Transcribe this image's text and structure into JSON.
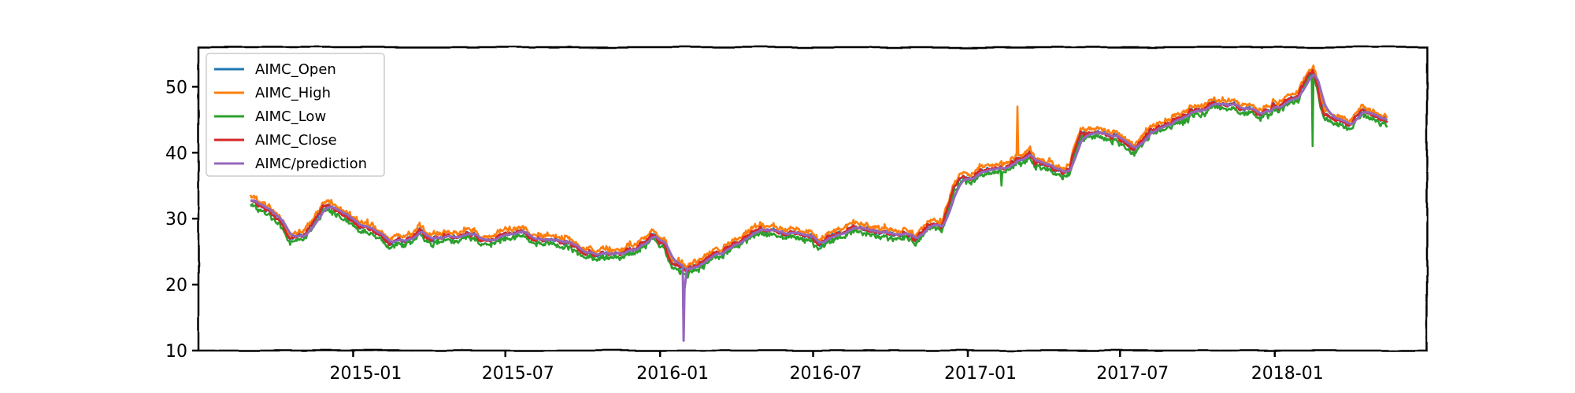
{
  "chart_data": {
    "type": "line",
    "title": "",
    "xlabel": "",
    "ylabel": "",
    "x_range": [
      "2014-09-01",
      "2018-05-15"
    ],
    "xlim": [
      "2014-07-01",
      "2018-07-01"
    ],
    "ylim": [
      10,
      56
    ],
    "grid": false,
    "legend_position": "top-left",
    "x_ticks": [
      "2015-01",
      "2015-07",
      "2016-01",
      "2016-07",
      "2017-01",
      "2017-07",
      "2018-01"
    ],
    "y_ticks": [
      "10",
      "20",
      "30",
      "40",
      "50"
    ],
    "anchors": {
      "x": [
        "2014-09-01",
        "2014-10-15",
        "2014-11-01",
        "2014-11-15",
        "2014-12-01",
        "2014-12-15",
        "2015-01-15",
        "2015-02-15",
        "2015-03-15",
        "2015-04-15",
        "2015-05-15",
        "2015-06-15",
        "2015-07-15",
        "2015-08-15",
        "2015-09-15",
        "2015-10-15",
        "2015-11-15",
        "2015-12-15",
        "2016-01-05",
        "2016-01-15",
        "2016-02-01",
        "2016-02-15",
        "2016-03-15",
        "2016-04-15",
        "2016-05-15",
        "2016-06-15",
        "2016-07-15",
        "2016-08-15",
        "2016-09-15",
        "2016-10-15",
        "2016-11-01",
        "2016-11-15",
        "2016-12-01",
        "2016-12-15",
        "2017-01-15",
        "2017-02-15",
        "2017-03-15",
        "2017-04-15",
        "2017-05-01",
        "2017-05-15",
        "2017-06-15",
        "2017-07-15",
        "2017-08-15",
        "2017-09-15",
        "2017-10-15",
        "2017-11-15",
        "2017-12-15",
        "2018-01-15",
        "2018-02-01",
        "2018-02-15",
        "2018-03-01",
        "2018-03-15",
        "2018-04-01",
        "2018-04-15",
        "2018-05-01",
        "2018-05-15"
      ],
      "close": [
        33.0,
        28.0,
        27.0,
        30.0,
        32.0,
        31.0,
        28.0,
        26.0,
        27.5,
        27.0,
        28.5,
        27.0,
        28.0,
        27.0,
        26.0,
        24.0,
        25.5,
        27.0,
        26.0,
        23.0,
        22.0,
        23.5,
        25.0,
        27.5,
        28.5,
        28.0,
        27.0,
        28.5,
        28.0,
        28.0,
        27.0,
        29.0,
        29.5,
        35.0,
        37.0,
        38.0,
        39.5,
        37.0,
        37.5,
        43.0,
        42.5,
        41.0,
        44.0,
        45.5,
        47.0,
        47.0,
        46.0,
        48.0,
        50.0,
        52.5,
        46.0,
        45.0,
        44.0,
        46.5,
        45.0,
        44.5
      ]
    },
    "series": [
      {
        "name": "AIMC_Open",
        "color": "#1f77b4"
      },
      {
        "name": "AIMC_High",
        "color": "#ff7f0e"
      },
      {
        "name": "AIMC_Low",
        "color": "#2ca02c"
      },
      {
        "name": "AIMC_Close",
        "color": "#d62728"
      },
      {
        "name": "AIMC/prediction",
        "color": "#9467bd"
      }
    ],
    "annotations": [
      {
        "series": "AIMC/prediction",
        "x": "2016-01-29",
        "y": 11.5,
        "note": "sharp downward spike"
      },
      {
        "series": "AIMC_High",
        "x": "2017-03-01",
        "y": 47.0,
        "note": "upward spike"
      },
      {
        "series": "AIMC_Low",
        "x": "2017-02-10",
        "y": 35.0,
        "note": "downward spike"
      },
      {
        "series": "AIMC_Low",
        "x": "2018-02-15",
        "y": 41.0,
        "note": "downward spike"
      }
    ]
  }
}
